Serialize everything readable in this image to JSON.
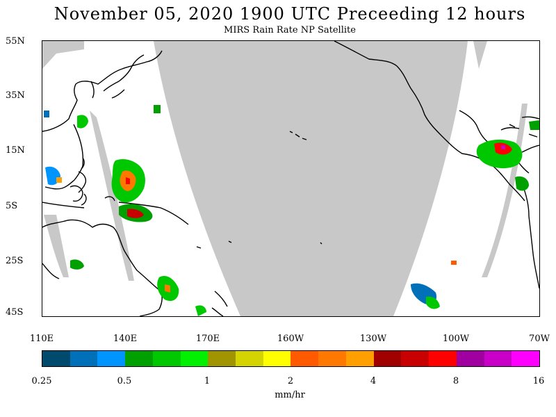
{
  "header": {
    "title": "November 05, 2020  1900 UTC Preceeding 12 hours",
    "subtitle": "MIRS Rain Rate NP Satellite"
  },
  "map": {
    "lat_labels": [
      "55N",
      "35N",
      "15N",
      "5S",
      "25S",
      "45S"
    ],
    "lon_labels": [
      "110E",
      "140E",
      "170E",
      "160W",
      "130W",
      "100W",
      "70W"
    ],
    "no_data_color": "#c8c8c8",
    "coastline_color": "#000000"
  },
  "colorbar": {
    "colors": [
      "#004a6e",
      "#0071b8",
      "#0094ff",
      "#00a000",
      "#00c800",
      "#00f000",
      "#a09400",
      "#d4d400",
      "#ffff00",
      "#ff5a00",
      "#ff7800",
      "#ffa000",
      "#a00000",
      "#c80000",
      "#ff0000",
      "#a000a0",
      "#c800c8",
      "#ff00ff"
    ],
    "tick_labels": [
      "0.25",
      "0.5",
      "1",
      "2",
      "4",
      "8",
      "16"
    ],
    "units": "mm/hr"
  }
}
